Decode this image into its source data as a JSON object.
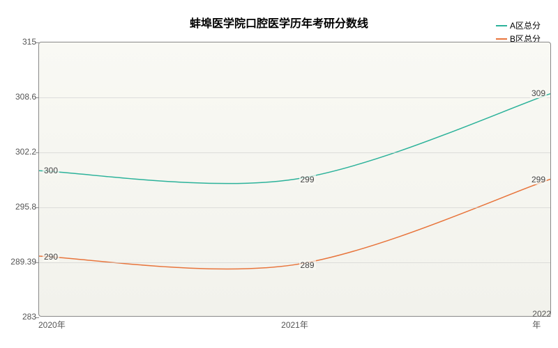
{
  "chart": {
    "type": "line",
    "title": "蚌埠医学院口腔医学历年考研分数线",
    "title_fontsize": 16,
    "background_gradient_top": "#f9f9f4",
    "background_gradient_bottom": "#f2f2ec",
    "border_color": "#888888",
    "grid_color": "#cccccc",
    "axis_label_color": "#555555",
    "axis_fontsize": 12,
    "ylim": [
      283,
      315
    ],
    "ytick_labels": [
      "283",
      "289.39",
      "295.8",
      "302.2",
      "308.6",
      "315"
    ],
    "ytick_values": [
      283,
      289.39,
      295.8,
      302.2,
      308.6,
      315
    ],
    "x_categories": [
      "2020年",
      "2021年",
      "2022年"
    ],
    "series": [
      {
        "name": "A区总分",
        "color": "#2bb29a",
        "values": [
          300,
          299,
          309
        ],
        "labels": [
          "300",
          "299",
          "309"
        ],
        "line_width": 1.5,
        "smooth": true
      },
      {
        "name": "B区总分",
        "color": "#e8743b",
        "values": [
          290,
          289,
          299
        ],
        "labels": [
          "290",
          "289",
          "299"
        ],
        "line_width": 1.5,
        "smooth": true
      }
    ],
    "legend": {
      "position": "top-right",
      "fontsize": 12
    }
  }
}
